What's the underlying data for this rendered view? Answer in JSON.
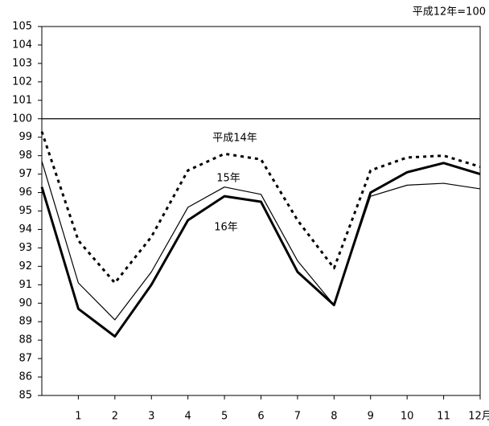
{
  "chart_data": {
    "type": "line",
    "note": "平成12年=100",
    "x": [
      0,
      1,
      2,
      3,
      4,
      5,
      6,
      7,
      8,
      9,
      10,
      11,
      12
    ],
    "xlim": [
      0,
      12
    ],
    "xticks": [
      1,
      2,
      3,
      4,
      5,
      6,
      7,
      8,
      9,
      10,
      11,
      {
        "value": 12,
        "label": "12月"
      }
    ],
    "ylim": [
      85,
      105
    ],
    "yticks": [
      85,
      86,
      87,
      88,
      89,
      90,
      91,
      92,
      93,
      94,
      95,
      96,
      97,
      98,
      99,
      100,
      101,
      102,
      103,
      104,
      105
    ],
    "hline": 100,
    "series": [
      {
        "name": "平成14年",
        "color": "#000000",
        "style": "dotted",
        "values": [
          99.3,
          93.4,
          91.1,
          93.6,
          97.2,
          98.1,
          97.8,
          94.5,
          91.9,
          97.2,
          97.9,
          98.0,
          97.4
        ]
      },
      {
        "name": "15年",
        "color": "#000000",
        "style": "thin",
        "values": [
          97.7,
          91.1,
          89.1,
          91.7,
          95.2,
          96.3,
          95.9,
          92.3,
          89.9,
          95.8,
          96.4,
          96.5,
          96.2
        ]
      },
      {
        "name": "16年",
        "color": "#000000",
        "style": "thick",
        "values": [
          96.3,
          89.7,
          88.2,
          91.0,
          94.5,
          95.8,
          95.5,
          91.7,
          89.9,
          96.0,
          97.1,
          97.6,
          97.0
        ]
      }
    ]
  }
}
